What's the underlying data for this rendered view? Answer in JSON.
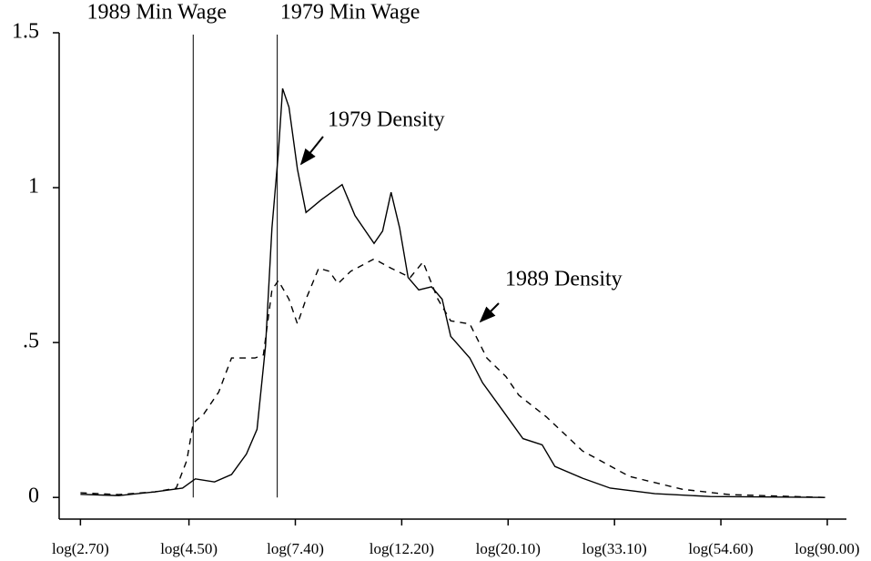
{
  "chart_data": {
    "type": "line",
    "xlim": [
      0.89,
      4.59
    ],
    "ylim": [
      -0.07,
      1.5
    ],
    "xticks": [
      {
        "value": 0.99,
        "label": "log(2.70)"
      },
      {
        "value": 1.5,
        "label": "log(4.50)"
      },
      {
        "value": 2.0,
        "label": "log(7.40)"
      },
      {
        "value": 2.5,
        "label": "log(12.20)"
      },
      {
        "value": 3.0,
        "label": "log(20.10)"
      },
      {
        "value": 3.5,
        "label": "log(33.10)"
      },
      {
        "value": 4.0,
        "label": "log(54.60)"
      },
      {
        "value": 4.5,
        "label": "log(90.00)"
      }
    ],
    "yticks": [
      0,
      {
        "value": 0.5,
        "label": ".5"
      },
      1,
      1.5
    ],
    "vlines": [
      {
        "x": 1.52,
        "label": "1989 Min Wage"
      },
      {
        "x": 1.915,
        "label": "1979 Min Wage"
      }
    ],
    "annotations": [
      "1979 Density",
      "1989 Density"
    ],
    "series": [
      {
        "color": "#000000",
        "dashed": false,
        "x": [
          0.99,
          1.17,
          1.34,
          1.47,
          1.53,
          1.62,
          1.7,
          1.77,
          1.82,
          1.86,
          1.89,
          1.92,
          1.94,
          1.97,
          2.01,
          2.05,
          2.12,
          2.22,
          2.28,
          2.37,
          2.41,
          2.45,
          2.49,
          2.53,
          2.58,
          2.64,
          2.69,
          2.73,
          2.82,
          2.88,
          2.97,
          3.07,
          3.16,
          3.22,
          3.35,
          3.48,
          3.69,
          3.95,
          4.49
        ],
        "values": [
          0.01,
          0.006,
          0.018,
          0.03,
          0.06,
          0.05,
          0.074,
          0.14,
          0.22,
          0.49,
          0.87,
          1.11,
          1.32,
          1.26,
          1.06,
          0.92,
          0.96,
          1.01,
          0.91,
          0.82,
          0.86,
          0.985,
          0.87,
          0.71,
          0.67,
          0.68,
          0.64,
          0.52,
          0.45,
          0.37,
          0.285,
          0.19,
          0.17,
          0.1,
          0.062,
          0.03,
          0.012,
          0.003,
          0.0
        ]
      },
      {
        "color": "#000000",
        "dashed": true,
        "x": [
          0.99,
          1.17,
          1.34,
          1.44,
          1.49,
          1.52,
          1.57,
          1.64,
          1.7,
          1.81,
          1.85,
          1.89,
          1.92,
          1.97,
          2.01,
          2.05,
          2.11,
          2.16,
          2.2,
          2.26,
          2.37,
          2.45,
          2.54,
          2.6,
          2.67,
          2.73,
          2.82,
          2.9,
          2.99,
          3.05,
          3.18,
          3.35,
          3.57,
          3.82,
          4.04,
          4.49
        ],
        "values": [
          0.015,
          0.009,
          0.018,
          0.03,
          0.12,
          0.24,
          0.27,
          0.34,
          0.45,
          0.45,
          0.46,
          0.67,
          0.7,
          0.64,
          0.56,
          0.64,
          0.74,
          0.73,
          0.69,
          0.73,
          0.77,
          0.74,
          0.71,
          0.76,
          0.64,
          0.57,
          0.56,
          0.45,
          0.39,
          0.33,
          0.26,
          0.15,
          0.068,
          0.026,
          0.009,
          0.0
        ]
      }
    ]
  }
}
